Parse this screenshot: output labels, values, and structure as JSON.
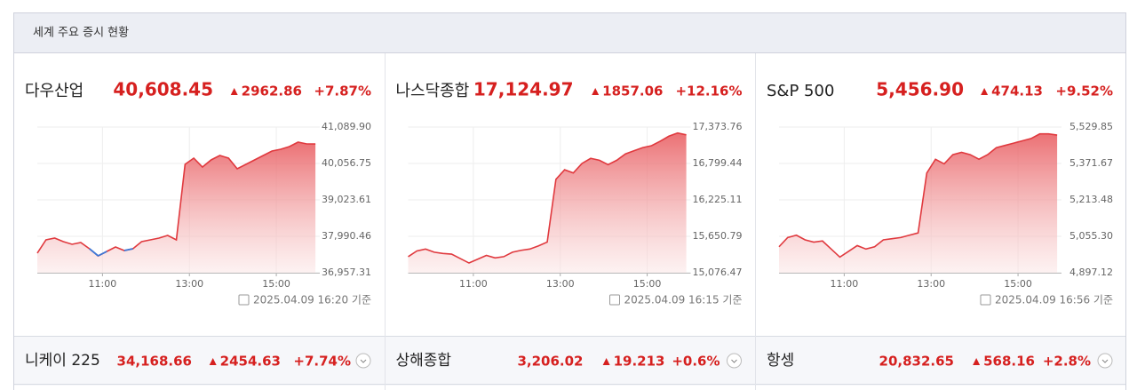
{
  "header": {
    "title": "세계 주요 증시 현황"
  },
  "cards": [
    {
      "name": "다우산업",
      "price": "40,608.45",
      "change": "2962.86",
      "percent": "+7.87%",
      "timestamp": "2025.04.09 16:20 기준"
    },
    {
      "name": "나스닥종합",
      "price": "17,124.97",
      "change": "1857.06",
      "percent": "+12.16%",
      "timestamp": "2025.04.09 16:15 기준"
    },
    {
      "name": "S&P 500",
      "price": "5,456.90",
      "change": "474.13",
      "percent": "+9.52%",
      "timestamp": "2025.04.09 16:56 기준"
    }
  ],
  "chart_data": [
    {
      "type": "line",
      "x": [
        9.5,
        9.7,
        9.9,
        10.1,
        10.3,
        10.5,
        10.7,
        10.9,
        11.1,
        11.3,
        11.5,
        11.7,
        11.9,
        12.1,
        12.3,
        12.5,
        12.7,
        12.9,
        13.1,
        13.3,
        13.5,
        13.7,
        13.9,
        14.1,
        14.3,
        14.5,
        14.7,
        14.9,
        15.1,
        15.3,
        15.5,
        15.7,
        15.9
      ],
      "series": [
        {
          "values": [
            37512,
            37890,
            37940,
            37839,
            37764,
            37814,
            37638,
            37436,
            37562,
            37688,
            37587,
            37638,
            37839,
            37890,
            37940,
            38016,
            37890,
            40032,
            40208,
            39956,
            40158,
            40284,
            40208,
            39906,
            40032,
            40158,
            40284,
            40410,
            40460,
            40536,
            40662,
            40611,
            40610
          ],
          "color": "#e0393e",
          "down_color": "#3b78d8"
        }
      ],
      "xlim": [
        9.5,
        16
      ],
      "xticks": [
        {
          "value": 11,
          "label": "11:00"
        },
        {
          "value": 13,
          "label": "13:00"
        },
        {
          "value": 15,
          "label": "15:00"
        }
      ],
      "ylim": [
        36957.31,
        41089.9
      ],
      "yticks": [
        {
          "value": 36957.31,
          "label": "36,957.31"
        },
        {
          "value": 37990.46,
          "label": "37,990.46"
        },
        {
          "value": 39023.61,
          "label": "39,023.61"
        },
        {
          "value": 40056.75,
          "label": "40,056.75"
        },
        {
          "value": 41089.9,
          "label": "41,089.90"
        }
      ],
      "grid": true
    },
    {
      "type": "line",
      "x": [
        9.5,
        9.7,
        9.9,
        10.1,
        10.3,
        10.5,
        10.7,
        10.9,
        11.1,
        11.3,
        11.5,
        11.7,
        11.9,
        12.1,
        12.3,
        12.5,
        12.7,
        12.9,
        13.1,
        13.3,
        13.5,
        13.7,
        13.9,
        14.1,
        14.3,
        14.5,
        14.7,
        14.9,
        15.1,
        15.3,
        15.5,
        15.7,
        15.9
      ],
      "series": [
        {
          "values": [
            15330,
            15420,
            15450,
            15400,
            15380,
            15370,
            15300,
            15230,
            15290,
            15350,
            15310,
            15330,
            15400,
            15430,
            15450,
            15500,
            15560,
            16550,
            16700,
            16650,
            16800,
            16880,
            16850,
            16780,
            16850,
            16950,
            17000,
            17050,
            17080,
            17150,
            17230,
            17280,
            17250
          ],
          "color": "#e0393e",
          "down_color": "#3b78d8"
        }
      ],
      "xlim": [
        9.5,
        16
      ],
      "xticks": [
        {
          "value": 11,
          "label": "11:00"
        },
        {
          "value": 13,
          "label": "13:00"
        },
        {
          "value": 15,
          "label": "15:00"
        }
      ],
      "ylim": [
        15076.47,
        17373.76
      ],
      "yticks": [
        {
          "value": 15076.47,
          "label": "15,076.47"
        },
        {
          "value": 15650.79,
          "label": "15,650.79"
        },
        {
          "value": 16225.11,
          "label": "16,225.11"
        },
        {
          "value": 16799.44,
          "label": "16,799.44"
        },
        {
          "value": 17373.76,
          "label": "17,373.76"
        }
      ],
      "grid": true
    },
    {
      "type": "line",
      "x": [
        9.5,
        9.7,
        9.9,
        10.1,
        10.3,
        10.5,
        10.7,
        10.9,
        11.1,
        11.3,
        11.5,
        11.7,
        11.9,
        12.1,
        12.3,
        12.5,
        12.7,
        12.9,
        13.1,
        13.3,
        13.5,
        13.7,
        13.9,
        14.1,
        14.3,
        14.5,
        14.7,
        14.9,
        15.1,
        15.3,
        15.5,
        15.7,
        15.9
      ],
      "series": [
        {
          "values": [
            5010,
            5050,
            5060,
            5040,
            5030,
            5035,
            5000,
            4965,
            4990,
            5015,
            5000,
            5010,
            5040,
            5045,
            5050,
            5060,
            5070,
            5330,
            5390,
            5370,
            5410,
            5420,
            5410,
            5390,
            5410,
            5440,
            5450,
            5460,
            5470,
            5480,
            5500,
            5500,
            5495
          ],
          "color": "#e0393e",
          "down_color": "#3b78d8"
        }
      ],
      "xlim": [
        9.5,
        16
      ],
      "xticks": [
        {
          "value": 11,
          "label": "11:00"
        },
        {
          "value": 13,
          "label": "13:00"
        },
        {
          "value": 15,
          "label": "15:00"
        }
      ],
      "ylim": [
        4897.12,
        5529.85
      ],
      "yticks": [
        {
          "value": 4897.12,
          "label": "4,897.12"
        },
        {
          "value": 5055.3,
          "label": "5,055.30"
        },
        {
          "value": 5213.48,
          "label": "5,213.48"
        },
        {
          "value": 5371.67,
          "label": "5,371.67"
        },
        {
          "value": 5529.85,
          "label": "5,529.85"
        }
      ],
      "grid": true
    }
  ],
  "bottom": [
    {
      "name": "니케이 225",
      "price": "34,168.66",
      "change": "2454.63",
      "percent": "+7.74%"
    },
    {
      "name": "상해종합",
      "price": "3,206.02",
      "change": "19.213",
      "percent": "+0.6%"
    },
    {
      "name": "항셍",
      "price": "20,832.65",
      "change": "568.16",
      "percent": "+2.8%"
    }
  ]
}
